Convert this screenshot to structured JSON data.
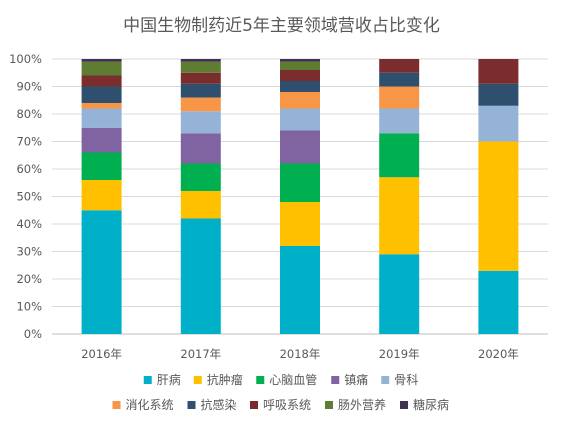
{
  "chart_data": {
    "type": "bar",
    "stacked": true,
    "percent": true,
    "title": "中国生物制药近5年主要领域营收占比变化",
    "categories": [
      "2016年",
      "2017年",
      "2018年",
      "2019年",
      "2020年"
    ],
    "yticks": [
      "0%",
      "10%",
      "20%",
      "30%",
      "40%",
      "50%",
      "60%",
      "70%",
      "80%",
      "90%",
      "100%"
    ],
    "ylim": [
      0,
      100
    ],
    "grid": true,
    "legend_position": "bottom",
    "series": [
      {
        "name": "肝病",
        "color": "#00B0C8",
        "values": [
          45,
          42,
          32,
          29,
          23
        ]
      },
      {
        "name": "抗肿瘤",
        "color": "#FFC000",
        "values": [
          11,
          10,
          16,
          28,
          47
        ]
      },
      {
        "name": "心脑血管",
        "color": "#00B050",
        "values": [
          10,
          10,
          14,
          16,
          0
        ]
      },
      {
        "name": "镇痛",
        "color": "#8064A2",
        "values": [
          9,
          11,
          12,
          0,
          0
        ]
      },
      {
        "name": "骨科",
        "color": "#95B3D7",
        "values": [
          7,
          8,
          8,
          9,
          13
        ]
      },
      {
        "name": "消化系统",
        "color": "#F79646",
        "values": [
          2,
          5,
          6,
          8,
          0
        ]
      },
      {
        "name": "抗感染",
        "color": "#2F4F6F",
        "values": [
          6,
          5,
          4,
          5,
          8
        ]
      },
      {
        "name": "呼吸系统",
        "color": "#7B2C2C",
        "values": [
          4,
          4,
          4,
          5,
          9
        ]
      },
      {
        "name": "肠外营养",
        "color": "#5F7D32",
        "values": [
          5,
          4,
          3,
          0,
          0
        ]
      },
      {
        "name": "糖尿病",
        "color": "#403151",
        "values": [
          1,
          1,
          1,
          0,
          0
        ]
      }
    ]
  }
}
